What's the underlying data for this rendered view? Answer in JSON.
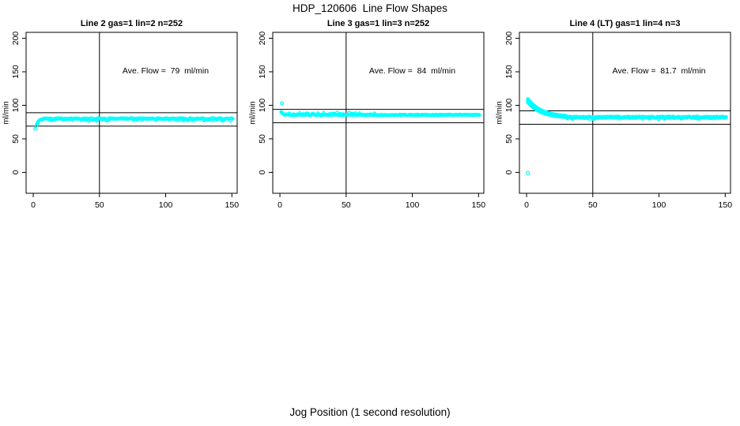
{
  "page": {
    "main_title": "HDP_120606  Line Flow Shapes",
    "x_axis_label": "Jog Position (1 second resolution)"
  },
  "chart_data": [
    {
      "type": "scatter",
      "title": "Line 2 gas=1 lin=2 n=252",
      "annotation": "Ave. Flow =  79  ml/min",
      "annotation_pos": {
        "x": 100,
        "y": 150
      },
      "ave_flow_ml_min": 79,
      "n_points": 252,
      "ylabel": "ml/min",
      "xticks": [
        0,
        50,
        100,
        150
      ],
      "yticks": [
        0,
        50,
        100,
        150,
        200
      ],
      "xlim": [
        -5.4,
        154.0
      ],
      "ylim": [
        -31.2,
        208.8
      ],
      "grid": false,
      "vline_x": 50,
      "hlines": [
        89,
        69
      ],
      "marker": "open-circle",
      "marker_color": "#00FFFF",
      "axis_color": "#000000",
      "series": {
        "outliers": [
          [
            1.6,
            65
          ]
        ],
        "lead_in": [
          [
            2.3,
            69.5
          ],
          [
            2.8,
            72
          ],
          [
            3.3,
            74
          ],
          [
            3.8,
            75.5
          ],
          [
            4.3,
            76.8
          ],
          [
            4.8,
            77.6
          ],
          [
            5.4,
            78.3
          ],
          [
            6.0,
            78.9
          ]
        ],
        "steady_band": {
          "x_start": 6.6,
          "x_end": 151,
          "step": 0.6,
          "y": 80.2,
          "spread": 1.5,
          "dip_prob": 0.22,
          "dip_mag": 2.6,
          "dip_sign": -1
        }
      }
    },
    {
      "type": "scatter",
      "title": "Line 3 gas=1 lin=3 n=252",
      "annotation": "Ave. Flow =  84  ml/min",
      "annotation_pos": {
        "x": 100,
        "y": 150
      },
      "ave_flow_ml_min": 84,
      "n_points": 252,
      "ylabel": "ml/min",
      "xticks": [
        0,
        50,
        100,
        150
      ],
      "yticks": [
        0,
        50,
        100,
        150,
        200
      ],
      "xlim": [
        -5.4,
        154.0
      ],
      "ylim": [
        -31.2,
        208.8
      ],
      "grid": false,
      "vline_x": 50,
      "hlines": [
        94,
        74
      ],
      "marker": "open-circle",
      "marker_color": "#00FFFF",
      "axis_color": "#000000",
      "series": {
        "outliers": [
          [
            1.5,
            103
          ]
        ],
        "lead_in": [
          [
            1.0,
            90
          ],
          [
            1.5,
            88.6
          ],
          [
            2.0,
            87.8
          ],
          [
            2.5,
            87.2
          ],
          [
            3.0,
            86.7
          ]
        ],
        "steady_band": {
          "x_start": 3.6,
          "x_end": 151,
          "step": 0.6,
          "y": 85.6,
          "spread": 1.3,
          "dip_prob": 0.2,
          "dip_mag": 2.2,
          "dip_sign": 1,
          "dip_xmax": 75
        }
      }
    },
    {
      "type": "scatter",
      "title": "Line 4 (LT) gas=1 lin=4 n=3",
      "annotation": "Ave. Flow =  81.7  ml/min",
      "annotation_pos": {
        "x": 100,
        "y": 150
      },
      "ave_flow_ml_min": 81.7,
      "n_points": 3,
      "ylabel": "ml/min",
      "xticks": [
        0,
        50,
        100,
        150
      ],
      "yticks": [
        0,
        50,
        100,
        150,
        200
      ],
      "xlim": [
        -5.4,
        154.0
      ],
      "ylim": [
        -31.2,
        208.8
      ],
      "grid": false,
      "vline_x": 50,
      "hlines": [
        91.7,
        71.7
      ],
      "marker": "open-circle",
      "marker_color": "#00FFFF",
      "axis_color": "#000000",
      "series": {
        "outliers": [
          [
            1,
            -1
          ]
        ],
        "decay": {
          "x_start": 1.0,
          "x_end": 30,
          "step": 0.3,
          "y_base": 82,
          "amplitude": 25,
          "tau": 10,
          "layer_offsets": [
            -2.4,
            -1.2,
            0,
            1.2,
            2.4
          ]
        },
        "steady_band": {
          "x_start": 30,
          "x_end": 151,
          "step": 0.45,
          "y": 82.2,
          "spread": 2.2,
          "dip_prob": 0.12,
          "dip_mag": 1.5,
          "dip_sign": -1
        }
      }
    }
  ]
}
